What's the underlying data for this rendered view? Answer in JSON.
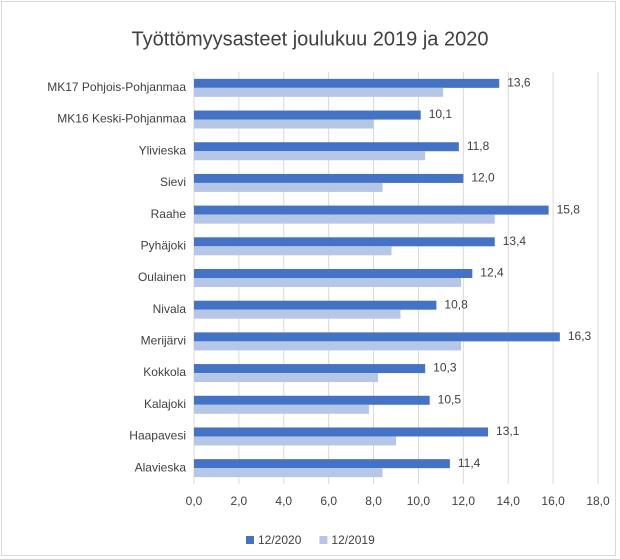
{
  "chart_data": {
    "type": "hbar",
    "title": "Työttömyysasteet joulukuu 2019 ja 2020",
    "categories": [
      "MK17 Pohjois-Pohjanmaa",
      "MK16 Keski-Pohjanmaa",
      "Ylivieska",
      "Sievi",
      "Raahe",
      "Pyhäjoki",
      "Oulainen",
      "Nivala",
      "Merijärvi",
      "Kokkola",
      "Kalajoki",
      "Haapavesi",
      "Alavieska"
    ],
    "series": [
      {
        "name": "12/2020",
        "color": "#4472c4",
        "values": [
          13.6,
          10.1,
          11.8,
          12.0,
          15.8,
          13.4,
          12.4,
          10.8,
          16.3,
          10.3,
          10.5,
          13.1,
          11.4
        ],
        "value_labels": [
          "13,6",
          "10,1",
          "11,8",
          "12,0",
          "15,8",
          "13,4",
          "12,4",
          "10,8",
          "16,3",
          "10,3",
          "10,5",
          "13,1",
          "11,4"
        ]
      },
      {
        "name": "12/2019",
        "color": "#b4c7e7",
        "values": [
          11.1,
          8.0,
          10.3,
          8.4,
          13.4,
          8.8,
          11.9,
          9.2,
          11.9,
          8.2,
          7.8,
          9.0,
          8.4
        ]
      }
    ],
    "xlim": [
      0,
      18
    ],
    "xticks": [
      {
        "value": 0,
        "label": "0,0"
      },
      {
        "value": 2,
        "label": "2,0"
      },
      {
        "value": 4,
        "label": "4,0"
      },
      {
        "value": 6,
        "label": "6,0"
      },
      {
        "value": 8,
        "label": "8,0"
      },
      {
        "value": 10,
        "label": "10,0"
      },
      {
        "value": 12,
        "label": "12,0"
      },
      {
        "value": 14,
        "label": "14,0"
      },
      {
        "value": 16,
        "label": "16,0"
      },
      {
        "value": 18,
        "label": "18,0"
      }
    ],
    "grid": true,
    "legend": "bottom"
  }
}
